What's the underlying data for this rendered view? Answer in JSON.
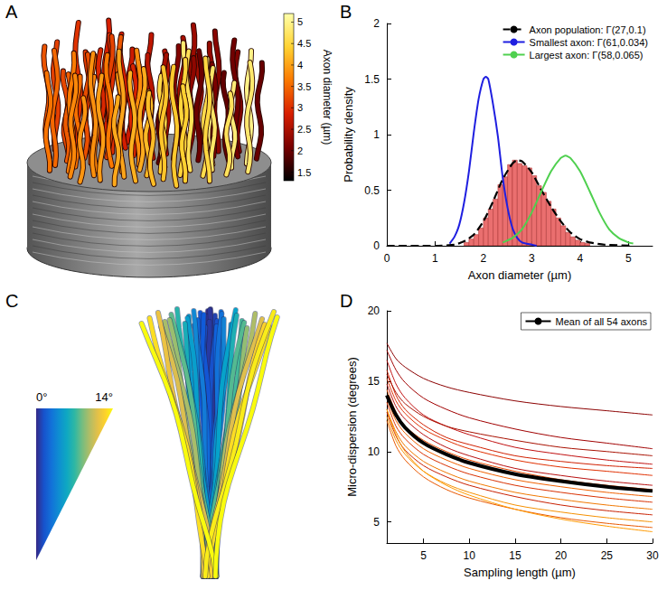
{
  "chart_data": [
    {
      "letter": "A",
      "type": "render",
      "colorbar": {
        "label": "Axon diameter (µm)",
        "range": [
          1.3,
          5.2
        ],
        "ticks": [
          1.5,
          2,
          2.5,
          3,
          3.5,
          4,
          4.5,
          5
        ]
      }
    },
    {
      "letter": "B",
      "type": "histogram",
      "x_label": "Axon diameter (µm)",
      "y_label": "Probability density",
      "bins": [
        1.6,
        1.7,
        1.8,
        1.9,
        2.0,
        2.1,
        2.2,
        2.3,
        2.4,
        2.5,
        2.6,
        2.7,
        2.8,
        2.9,
        3.0,
        3.1,
        3.2,
        3.3,
        3.4,
        3.5,
        3.6,
        3.7,
        3.8,
        3.9,
        4.0,
        4.1,
        4.2
      ],
      "values": [
        0.03,
        0.06,
        0.1,
        0.16,
        0.25,
        0.33,
        0.42,
        0.55,
        0.62,
        0.73,
        0.77,
        0.74,
        0.72,
        0.7,
        0.63,
        0.54,
        0.48,
        0.4,
        0.33,
        0.25,
        0.18,
        0.12,
        0.08,
        0.05,
        0.03,
        0.02
      ],
      "color": "#ea6f6f",
      "series": [
        {
          "name": "Axon population: Γ(27,0.1)",
          "type": "line",
          "color": "#000000",
          "line_style": "dashed",
          "x": [
            0,
            1,
            1.4,
            1.6,
            1.8,
            2,
            2.2,
            2.4,
            2.6,
            2.7,
            2.8,
            3,
            3.2,
            3.4,
            3.6,
            3.8,
            4,
            4.2,
            4.5,
            5.1
          ],
          "values": [
            0,
            0,
            0.01,
            0.04,
            0.1,
            0.22,
            0.4,
            0.6,
            0.74,
            0.77,
            0.76,
            0.66,
            0.5,
            0.35,
            0.22,
            0.12,
            0.06,
            0.03,
            0.01,
            0
          ]
        },
        {
          "name": "Smallest axon: Γ(61,0.034)",
          "type": "line",
          "color": "#1f1fe0",
          "line_style": "solid",
          "x": [
            1.3,
            1.4,
            1.5,
            1.6,
            1.7,
            1.8,
            1.9,
            2,
            2.05,
            2.1,
            2.2,
            2.3,
            2.4,
            2.5,
            2.6,
            2.7,
            2.8,
            3,
            3.1
          ],
          "values": [
            0.02,
            0.08,
            0.19,
            0.39,
            0.67,
            1.02,
            1.32,
            1.5,
            1.52,
            1.5,
            1.27,
            0.98,
            0.61,
            0.34,
            0.16,
            0.07,
            0.03,
            0.01,
            0
          ]
        },
        {
          "name": "Largest axon: Γ(58,0.065)",
          "type": "line",
          "color": "#4fd04f",
          "line_style": "solid",
          "x": [
            2.4,
            2.6,
            2.8,
            3,
            3.2,
            3.4,
            3.6,
            3.7,
            3.8,
            4,
            4.2,
            4.4,
            4.6,
            4.8,
            5,
            5.1
          ],
          "values": [
            0.03,
            0.07,
            0.15,
            0.3,
            0.49,
            0.67,
            0.79,
            0.81,
            0.79,
            0.67,
            0.49,
            0.3,
            0.15,
            0.07,
            0.03,
            0.02
          ]
        }
      ],
      "xlim": [
        0,
        5.5
      ],
      "xticks": [
        0,
        1,
        2,
        3,
        4,
        5
      ],
      "ylim": [
        0,
        2
      ],
      "yticks": [
        0,
        0.5,
        1,
        1.5,
        2
      ],
      "grid": false,
      "legend": "top-right"
    },
    {
      "letter": "C",
      "type": "render",
      "colorscale": {
        "range": [
          0,
          14
        ],
        "labels": [
          {
            "value": 0,
            "label": "0°"
          },
          {
            "value": 14,
            "label": "14°"
          }
        ]
      }
    },
    {
      "letter": "D",
      "type": "line",
      "x_label": "Sampling length (µm)",
      "y_label": "Micro-dispersion (degrees)",
      "x": [
        1,
        2,
        3,
        5,
        7.5,
        10,
        15,
        20,
        25,
        30
      ],
      "series": [
        {
          "color": "#8b0000",
          "values": [
            17.7,
            16.6,
            16,
            15.2,
            14.6,
            14.2,
            13.6,
            13.2,
            12.9,
            12.6
          ]
        },
        {
          "color": "#a00000",
          "values": [
            17.2,
            15.8,
            14.9,
            13.8,
            13,
            12.4,
            11.6,
            11,
            10.6,
            10.2
          ]
        },
        {
          "color": "#c01010",
          "values": [
            16.5,
            14.8,
            13.8,
            12.6,
            11.8,
            11.2,
            10.3,
            9.8,
            9.4,
            9.1
          ]
        },
        {
          "color": "#d02000",
          "values": [
            15.8,
            14,
            13,
            11.9,
            11,
            10.5,
            9.7,
            9.3,
            9,
            8.8
          ]
        },
        {
          "color": "#a81000",
          "values": [
            15.5,
            14.2,
            13.4,
            12.5,
            11.8,
            11.4,
            10.8,
            10.3,
            10,
            9.7
          ]
        },
        {
          "color": "#e03000",
          "values": [
            15.2,
            13.6,
            12.7,
            11.6,
            10.8,
            10.2,
            9.4,
            8.9,
            8.6,
            8.3
          ]
        },
        {
          "color": "#b81010",
          "values": [
            14.8,
            13.2,
            12.3,
            11.2,
            10.3,
            9.7,
            8.8,
            8.3,
            7.9,
            7.6
          ]
        },
        {
          "color": "#e84a00",
          "values": [
            14.4,
            12.8,
            11.8,
            10.8,
            10,
            9.4,
            8.6,
            8,
            7.6,
            7.3
          ]
        },
        {
          "color": "#f06000",
          "values": [
            13.8,
            12.2,
            11.3,
            10.2,
            9.4,
            8.8,
            8,
            7.5,
            7.1,
            6.8
          ]
        },
        {
          "color": "#d83000",
          "values": [
            13.5,
            11.8,
            10.9,
            9.8,
            9,
            8.4,
            7.6,
            7.1,
            6.7,
            6.4
          ]
        },
        {
          "color": "#f07800",
          "values": [
            13,
            11.4,
            10.4,
            9.3,
            8.5,
            7.9,
            7.1,
            6.6,
            6.2,
            5.9
          ]
        },
        {
          "color": "#c82000",
          "values": [
            12.8,
            11.1,
            10.1,
            9,
            8.2,
            7.6,
            6.8,
            6.2,
            5.8,
            5.5
          ]
        },
        {
          "color": "#f59000",
          "values": [
            12.5,
            10.8,
            9.8,
            8.6,
            7.7,
            7.1,
            6.2,
            5.7,
            5.3,
            5
          ]
        },
        {
          "color": "#e85800",
          "values": [
            12.2,
            10.4,
            9.4,
            8.2,
            7.3,
            6.7,
            5.9,
            5.3,
            4.9,
            4.6
          ]
        },
        {
          "color": "#ff9a00",
          "values": [
            13,
            11.2,
            10,
            8.6,
            7.6,
            6.9,
            5.9,
            5.2,
            4.7,
            4.3
          ]
        },
        {
          "name": "Mean of all 54 axons",
          "color": "#000000",
          "values": [
            14,
            12.6,
            11.7,
            10.6,
            9.8,
            9.2,
            8.4,
            7.9,
            7.5,
            7.2
          ]
        }
      ],
      "xlim": [
        1,
        30
      ],
      "xticks": [
        5,
        10,
        15,
        20,
        25,
        30
      ],
      "ylim": [
        3.5,
        20
      ],
      "yticks": [
        5,
        10,
        15,
        20
      ],
      "grid": false,
      "legend": "top-right"
    }
  ]
}
